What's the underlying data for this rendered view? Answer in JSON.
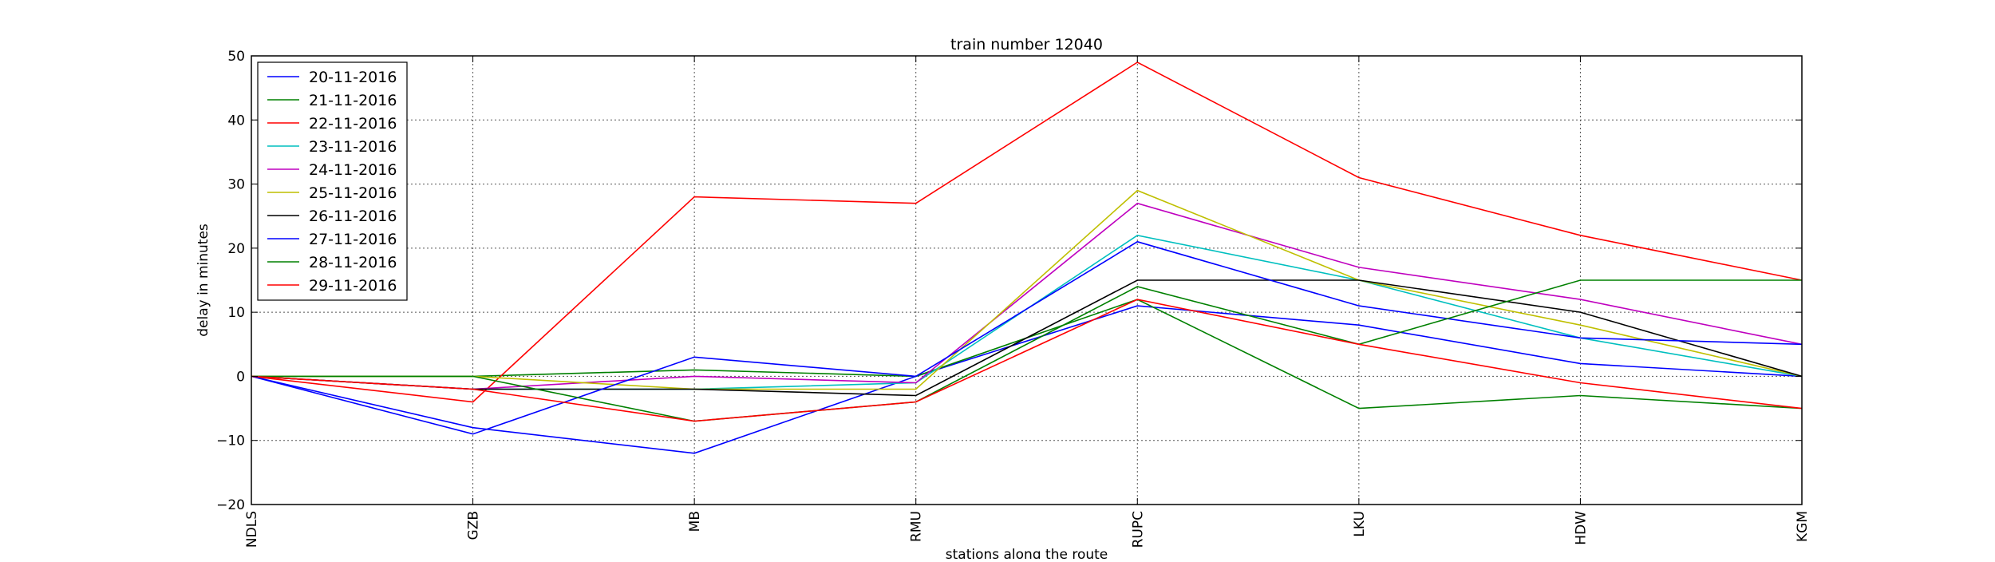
{
  "chart_data": {
    "type": "line",
    "title": "train number 12040",
    "xlabel": "stations along the route",
    "ylabel": "delay in minutes",
    "categories": [
      "NDLS",
      "GZB",
      "MB",
      "RMU",
      "RUPC",
      "LKU",
      "HDW",
      "KGM"
    ],
    "ylim": [
      -20,
      50
    ],
    "yticks": [
      -20,
      -10,
      0,
      10,
      20,
      30,
      40,
      50
    ],
    "ytick_labels": [
      "−20",
      "−10",
      "0",
      "10",
      "20",
      "30",
      "40",
      "50"
    ],
    "grid": true,
    "grid_style": "dotted",
    "legend_position": "upper left",
    "series": [
      {
        "name": "20-11-2016",
        "color": "#0000ff",
        "values": [
          0,
          -8,
          -12,
          0,
          11,
          8,
          2,
          0
        ]
      },
      {
        "name": "21-11-2016",
        "color": "#008000",
        "values": [
          0,
          0,
          1,
          0,
          12,
          -5,
          -3,
          -5
        ]
      },
      {
        "name": "22-11-2016",
        "color": "#ff0000",
        "values": [
          0,
          -4,
          28,
          27,
          49,
          31,
          22,
          15
        ]
      },
      {
        "name": "23-11-2016",
        "color": "#00bfbf",
        "values": [
          0,
          -2,
          -2,
          -1,
          22,
          15,
          6,
          0
        ]
      },
      {
        "name": "24-11-2016",
        "color": "#bf00bf",
        "values": [
          0,
          -2,
          0,
          -1,
          27,
          17,
          12,
          5
        ]
      },
      {
        "name": "25-11-2016",
        "color": "#bfbf00",
        "values": [
          0,
          0,
          -2,
          -2,
          29,
          15,
          8,
          0
        ]
      },
      {
        "name": "26-11-2016",
        "color": "#000000",
        "values": [
          0,
          -2,
          -2,
          -3,
          15,
          15,
          10,
          0
        ]
      },
      {
        "name": "27-11-2016",
        "color": "#0000ff",
        "values": [
          0,
          -9,
          3,
          0,
          21,
          11,
          6,
          5
        ]
      },
      {
        "name": "28-11-2016",
        "color": "#008000",
        "values": [
          0,
          0,
          -7,
          -4,
          14,
          5,
          15,
          15
        ]
      },
      {
        "name": "29-11-2016",
        "color": "#ff0000",
        "values": [
          0,
          -2,
          -7,
          -4,
          12,
          5,
          -1,
          -5
        ]
      }
    ]
  }
}
